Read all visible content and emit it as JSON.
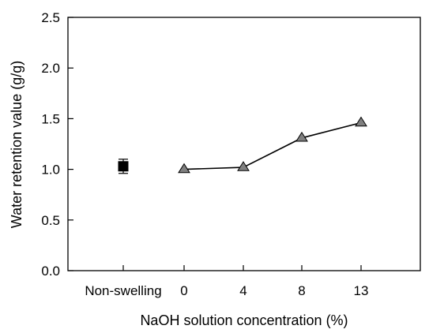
{
  "chart_data": {
    "type": "line",
    "xlabel": "NaOH solution concentration (%)",
    "ylabel": "Water retention value (g/g)",
    "ylim": [
      0,
      2.5
    ],
    "yticks": [
      "0.0",
      "0.5",
      "1.0",
      "1.5",
      "2.0",
      "2.5"
    ],
    "categories": [
      "Non-swelling",
      "0",
      "4",
      "8",
      "13"
    ],
    "grid": false,
    "legend": "none",
    "series": [
      {
        "marker": "square",
        "color": "#000000",
        "points": [
          {
            "x": "Non-swelling",
            "y": 1.03,
            "error": 0.07
          }
        ]
      },
      {
        "marker": "triangle",
        "color": "#808080",
        "line": true,
        "points": [
          {
            "x": "0",
            "y": 1.0
          },
          {
            "x": "4",
            "y": 1.02
          },
          {
            "x": "8",
            "y": 1.31
          },
          {
            "x": "13",
            "y": 1.46
          }
        ]
      }
    ]
  }
}
